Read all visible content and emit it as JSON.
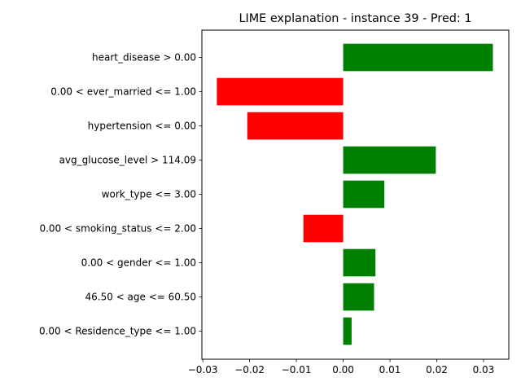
{
  "chart_data": {
    "type": "bar",
    "orientation": "horizontal",
    "title": "LIME explanation - instance 39 - Pred: 1",
    "xlabel": "",
    "ylabel": "",
    "categories": [
      "heart_disease > 0.00",
      "0.00 < ever_married <= 1.00",
      "hypertension <= 0.00",
      "avg_glucose_level > 114.09",
      "work_type <= 3.00",
      "0.00 < smoking_status <= 2.00",
      "0.00 < gender <= 1.00",
      "46.50 < age <= 60.50",
      "0.00 < Residence_type <= 1.00"
    ],
    "values": [
      0.032,
      -0.027,
      -0.0205,
      0.0198,
      0.0088,
      -0.0085,
      0.0069,
      0.0066,
      0.0018
    ],
    "xlim": [
      -0.0302,
      0.0354
    ],
    "xticks": [
      -0.03,
      -0.02,
      -0.01,
      0.0,
      0.01,
      0.02,
      0.03
    ],
    "xtick_labels": [
      "−0.03",
      "−0.02",
      "−0.01",
      "0.00",
      "0.01",
      "0.02",
      "0.03"
    ],
    "grid": false,
    "colors": {
      "positive": "#008000",
      "negative": "#ff0000",
      "axis": "#000000"
    }
  }
}
